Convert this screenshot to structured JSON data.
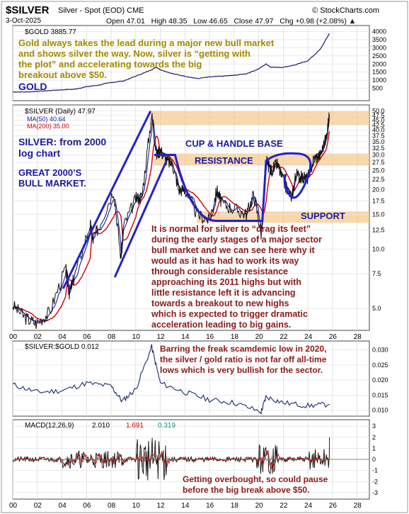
{
  "header": {
    "symbol": "$SILVER",
    "subtitle": "Silver - Spot (EOD) CME",
    "logo": "© StockCharts.com",
    "date": "3-Oct-2025",
    "stats": {
      "open": "Open 47.01",
      "high": "High 48.35",
      "low": "Low 46.65",
      "close": "Close 47.97",
      "chg": "Chg +0.98 (+2.08%) ▲"
    }
  },
  "panels": {
    "gold": {
      "legend": "$GOLD 3885.77",
      "annotation_lines": [
        "Gold always takes the lead during a major new bull market",
        "and shows silver the way. Now, silver is “getting with",
        "the plot” and accelerating towards the big",
        "breakout above $50."
      ],
      "label": "GOLD",
      "y_ticks": [
        "4000",
        "3500",
        "3000",
        "2500",
        "2000",
        "1500",
        "1000",
        "500"
      ]
    },
    "silver": {
      "legend_main": "$SILVER (Daily) 47.97",
      "legend_ma50": "MA(50) 40.64",
      "legend_ma200": "MA(200) 35.00",
      "label_log": [
        "SILVER: from 2000",
        "log chart"
      ],
      "label_bull": [
        "GREAT 2000’S",
        "BULL MARKET."
      ],
      "cup_label": "CUP & HANDLE BASE",
      "resistance_label": "RESISTANCE",
      "support_label": "SUPPORT",
      "annotation_lines": [
        "It is normal for silver to “drag its feet”",
        "during the early stages of a major sector",
        "bull market and we can see here why it",
        "would as it has had to work its way",
        "through considerable resistance",
        "approaching its 2011 highs but with",
        "little resistance left it is advancing",
        "towards a breakout to new highs",
        "which is expected to trigger dramatic",
        "acceleration leading to big gains."
      ],
      "y_ticks": [
        "50.0",
        "47.5",
        "45.0",
        "42.5",
        "40.0",
        "37.5",
        "35.0",
        "32.5",
        "30.0",
        "27.5",
        "25.0",
        "22.5",
        "20.0",
        "17.5",
        "15.0",
        "12.5",
        "10.0",
        "7.5",
        "5.0"
      ]
    },
    "ratio": {
      "legend": "$SILVER:$GOLD 0.012",
      "annotation_lines": [
        "Barring the freak scamdemic low in 2020,",
        "the silver / gold ratio is not far off all-time",
        "lows which is very bullish for the sector."
      ],
      "y_ticks": [
        "0.030",
        "0.025",
        "0.020",
        "0.015",
        "0.010"
      ]
    },
    "macd": {
      "legend_label": "MACD(12,26,9)",
      "legend_v1": "2.010",
      "legend_v2": "1.691",
      "legend_v3": "0.319",
      "annotation_lines": [
        "Getting overbought, so could pause",
        "before the big break above $50."
      ],
      "y_ticks": [
        "3",
        "2",
        "1",
        "0",
        "-1",
        "-2",
        "-3"
      ]
    }
  },
  "x_axis_labels": [
    "00",
    "02",
    "04",
    "06",
    "08",
    "10",
    "12",
    "14",
    "16",
    "18",
    "20",
    "22",
    "24",
    "26",
    "28"
  ],
  "colors": {
    "annotation_gold": "#a08a00",
    "annotation_red": "#8b1a1a",
    "navy": "#1a1aa0",
    "band": "#f8c27a",
    "ma50": "#1a1aa0",
    "ma200": "#d40000",
    "ratio_line": "#1a2a6c",
    "macd_signal": "#d40000"
  },
  "chart_data": [
    {
      "type": "line",
      "panel": "gold",
      "y_scale": "linear",
      "ylim": [
        0,
        4200
      ],
      "x": [
        2000,
        2001,
        2002,
        2003,
        2004,
        2005,
        2006,
        2007,
        2008,
        2009,
        2010,
        2011,
        2011.7,
        2012,
        2013,
        2014,
        2015,
        2016,
        2017,
        2018,
        2019,
        2020,
        2020.6,
        2021,
        2022,
        2023,
        2024,
        2025,
        2025.75
      ],
      "values": [
        280,
        270,
        310,
        360,
        410,
        440,
        600,
        700,
        860,
        950,
        1250,
        1550,
        1800,
        1650,
        1400,
        1250,
        1100,
        1200,
        1250,
        1300,
        1400,
        1700,
        2000,
        1800,
        1800,
        1950,
        2200,
        2900,
        3885
      ]
    },
    {
      "type": "line",
      "panel": "silver",
      "y_scale": "log",
      "ylim": [
        4,
        52
      ],
      "series": [
        {
          "name": "$SILVER (Daily)",
          "x": [
            2000,
            2001,
            2001.9,
            2003,
            2004.3,
            2004.6,
            2005,
            2006.3,
            2006.5,
            2007,
            2008.2,
            2008.8,
            2009,
            2010,
            2010.5,
            2011.3,
            2011.7,
            2012,
            2012.5,
            2013,
            2013.5,
            2014,
            2015,
            2016,
            2016.6,
            2017,
            2018,
            2019,
            2019.6,
            2020.2,
            2020.6,
            2021,
            2021.5,
            2022,
            2022.7,
            2023,
            2023.5,
            2024,
            2024.5,
            2025,
            2025.5,
            2025.75
          ],
          "values": [
            5.2,
            4.5,
            4.2,
            4.8,
            8.0,
            6.0,
            7.2,
            13.5,
            11.0,
            13.0,
            20.0,
            9.0,
            13.0,
            18.0,
            18.5,
            48.0,
            30.0,
            32.0,
            28.0,
            27.0,
            20.0,
            20.0,
            15.0,
            14.0,
            20.0,
            17.0,
            16.0,
            15.0,
            19.0,
            12.0,
            28.0,
            25.0,
            27.0,
            22.0,
            18.0,
            24.0,
            23.0,
            23.0,
            29.0,
            30.0,
            37.0,
            47.97
          ]
        }
      ]
    },
    {
      "type": "line",
      "panel": "ratio",
      "ylim": [
        0.009,
        0.032
      ],
      "x": [
        2000,
        2002,
        2004,
        2006,
        2008,
        2008.9,
        2010,
        2011.3,
        2012,
        2014,
        2016,
        2018,
        2020.2,
        2020.6,
        2022,
        2024,
        2025.75
      ],
      "values": [
        0.0185,
        0.016,
        0.0165,
        0.019,
        0.018,
        0.013,
        0.017,
        0.031,
        0.019,
        0.016,
        0.0135,
        0.0125,
        0.0095,
        0.0145,
        0.0125,
        0.0115,
        0.012
      ]
    },
    {
      "type": "bar",
      "panel": "macd",
      "ylim": [
        -3.2,
        3.2
      ],
      "legend": "MACD(12,26,9) 2.010, 1.691, 0.319",
      "last_values": {
        "macd": 2.01,
        "signal": 1.691,
        "histogram": 0.319
      }
    }
  ]
}
